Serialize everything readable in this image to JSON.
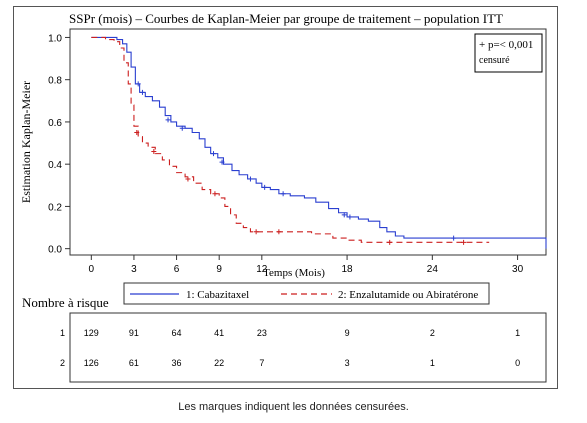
{
  "chart_data": {
    "type": "line",
    "title": "SSPr (mois) – Courbes de Kaplan-Meier par groupe de traitement – population ITT",
    "xlabel": "Temps (Mois)",
    "ylabel": "Estimation Kaplan-Meier",
    "xlim": [
      -1.5,
      32
    ],
    "ylim": [
      -0.03,
      1.04
    ],
    "xticks": [
      0,
      3,
      6,
      9,
      12,
      18,
      24,
      30
    ],
    "yticks": [
      "0.0",
      "0.2",
      "0.4",
      "0.6",
      "0.8",
      "1.0"
    ],
    "annotation": [
      "+ p=< 0,001",
      "censuré"
    ],
    "series": [
      {
        "name": "1: Cabazitaxel",
        "color": "#2a3fd0",
        "dash": "none",
        "points": [
          [
            0,
            1.0
          ],
          [
            1.0,
            1.0
          ],
          [
            1.8,
            0.99
          ],
          [
            2.2,
            0.97
          ],
          [
            2.5,
            0.93
          ],
          [
            2.8,
            0.86
          ],
          [
            3.1,
            0.78
          ],
          [
            3.4,
            0.74
          ],
          [
            3.8,
            0.72
          ],
          [
            4.3,
            0.7
          ],
          [
            4.8,
            0.67
          ],
          [
            5.2,
            0.63
          ],
          [
            5.6,
            0.6
          ],
          [
            6.0,
            0.58
          ],
          [
            6.6,
            0.57
          ],
          [
            7.1,
            0.55
          ],
          [
            7.6,
            0.52
          ],
          [
            8.0,
            0.48
          ],
          [
            8.4,
            0.45
          ],
          [
            8.9,
            0.43
          ],
          [
            9.3,
            0.4
          ],
          [
            9.9,
            0.37
          ],
          [
            10.4,
            0.35
          ],
          [
            11.0,
            0.33
          ],
          [
            11.6,
            0.31
          ],
          [
            12.0,
            0.29
          ],
          [
            12.6,
            0.28
          ],
          [
            13.2,
            0.26
          ],
          [
            14.0,
            0.25
          ],
          [
            15.0,
            0.24
          ],
          [
            15.8,
            0.22
          ],
          [
            16.7,
            0.19
          ],
          [
            17.4,
            0.17
          ],
          [
            18.0,
            0.15
          ],
          [
            18.8,
            0.14
          ],
          [
            19.5,
            0.13
          ],
          [
            20.3,
            0.1
          ],
          [
            20.8,
            0.08
          ],
          [
            21.4,
            0.06
          ],
          [
            22.0,
            0.05
          ],
          [
            26.0,
            0.05
          ],
          [
            32.0,
            0.05
          ],
          [
            32.0,
            0.0
          ]
        ],
        "censored": [
          [
            3.3,
            0.78
          ],
          [
            3.6,
            0.74
          ],
          [
            5.4,
            0.61
          ],
          [
            6.4,
            0.57
          ],
          [
            8.6,
            0.45
          ],
          [
            9.2,
            0.41
          ],
          [
            11.2,
            0.33
          ],
          [
            12.2,
            0.29
          ],
          [
            13.5,
            0.26
          ],
          [
            17.8,
            0.16
          ],
          [
            18.2,
            0.15
          ],
          [
            25.5,
            0.05
          ]
        ]
      },
      {
        "name": "2: Enzalutamide ou Abiratérone",
        "color": "#cc1f1f",
        "dash": "6,4",
        "points": [
          [
            0,
            1.0
          ],
          [
            1.0,
            0.99
          ],
          [
            1.6,
            0.98
          ],
          [
            2.0,
            0.95
          ],
          [
            2.3,
            0.88
          ],
          [
            2.6,
            0.78
          ],
          [
            2.8,
            0.68
          ],
          [
            3.0,
            0.58
          ],
          [
            3.3,
            0.53
          ],
          [
            3.6,
            0.5
          ],
          [
            4.0,
            0.48
          ],
          [
            4.5,
            0.45
          ],
          [
            5.0,
            0.42
          ],
          [
            5.5,
            0.39
          ],
          [
            6.0,
            0.36
          ],
          [
            6.6,
            0.34
          ],
          [
            7.2,
            0.31
          ],
          [
            7.8,
            0.28
          ],
          [
            8.4,
            0.26
          ],
          [
            9.0,
            0.24
          ],
          [
            9.4,
            0.2
          ],
          [
            9.8,
            0.16
          ],
          [
            10.2,
            0.12
          ],
          [
            10.7,
            0.1
          ],
          [
            11.2,
            0.08
          ],
          [
            12.0,
            0.08
          ],
          [
            14.0,
            0.08
          ],
          [
            15.5,
            0.07
          ],
          [
            17.0,
            0.05
          ],
          [
            18.0,
            0.04
          ],
          [
            19.0,
            0.03
          ],
          [
            25.0,
            0.03
          ],
          [
            28.0,
            0.03
          ]
        ],
        "censored": [
          [
            3.2,
            0.55
          ],
          [
            4.4,
            0.46
          ],
          [
            6.8,
            0.33
          ],
          [
            8.7,
            0.26
          ],
          [
            11.6,
            0.08
          ],
          [
            13.2,
            0.08
          ],
          [
            21.0,
            0.03
          ],
          [
            26.2,
            0.03
          ]
        ]
      }
    ],
    "risk_table": {
      "title": "Nombre à risque",
      "rows": [
        {
          "label": "1",
          "values": [
            "129",
            "91",
            "64",
            "41",
            "23",
            "9",
            "2",
            "1"
          ]
        },
        {
          "label": "2",
          "values": [
            "126",
            "61",
            "36",
            "22",
            "7",
            "3",
            "1",
            "0"
          ]
        }
      ]
    }
  },
  "caption": "Les marques indiquent les données censurées."
}
